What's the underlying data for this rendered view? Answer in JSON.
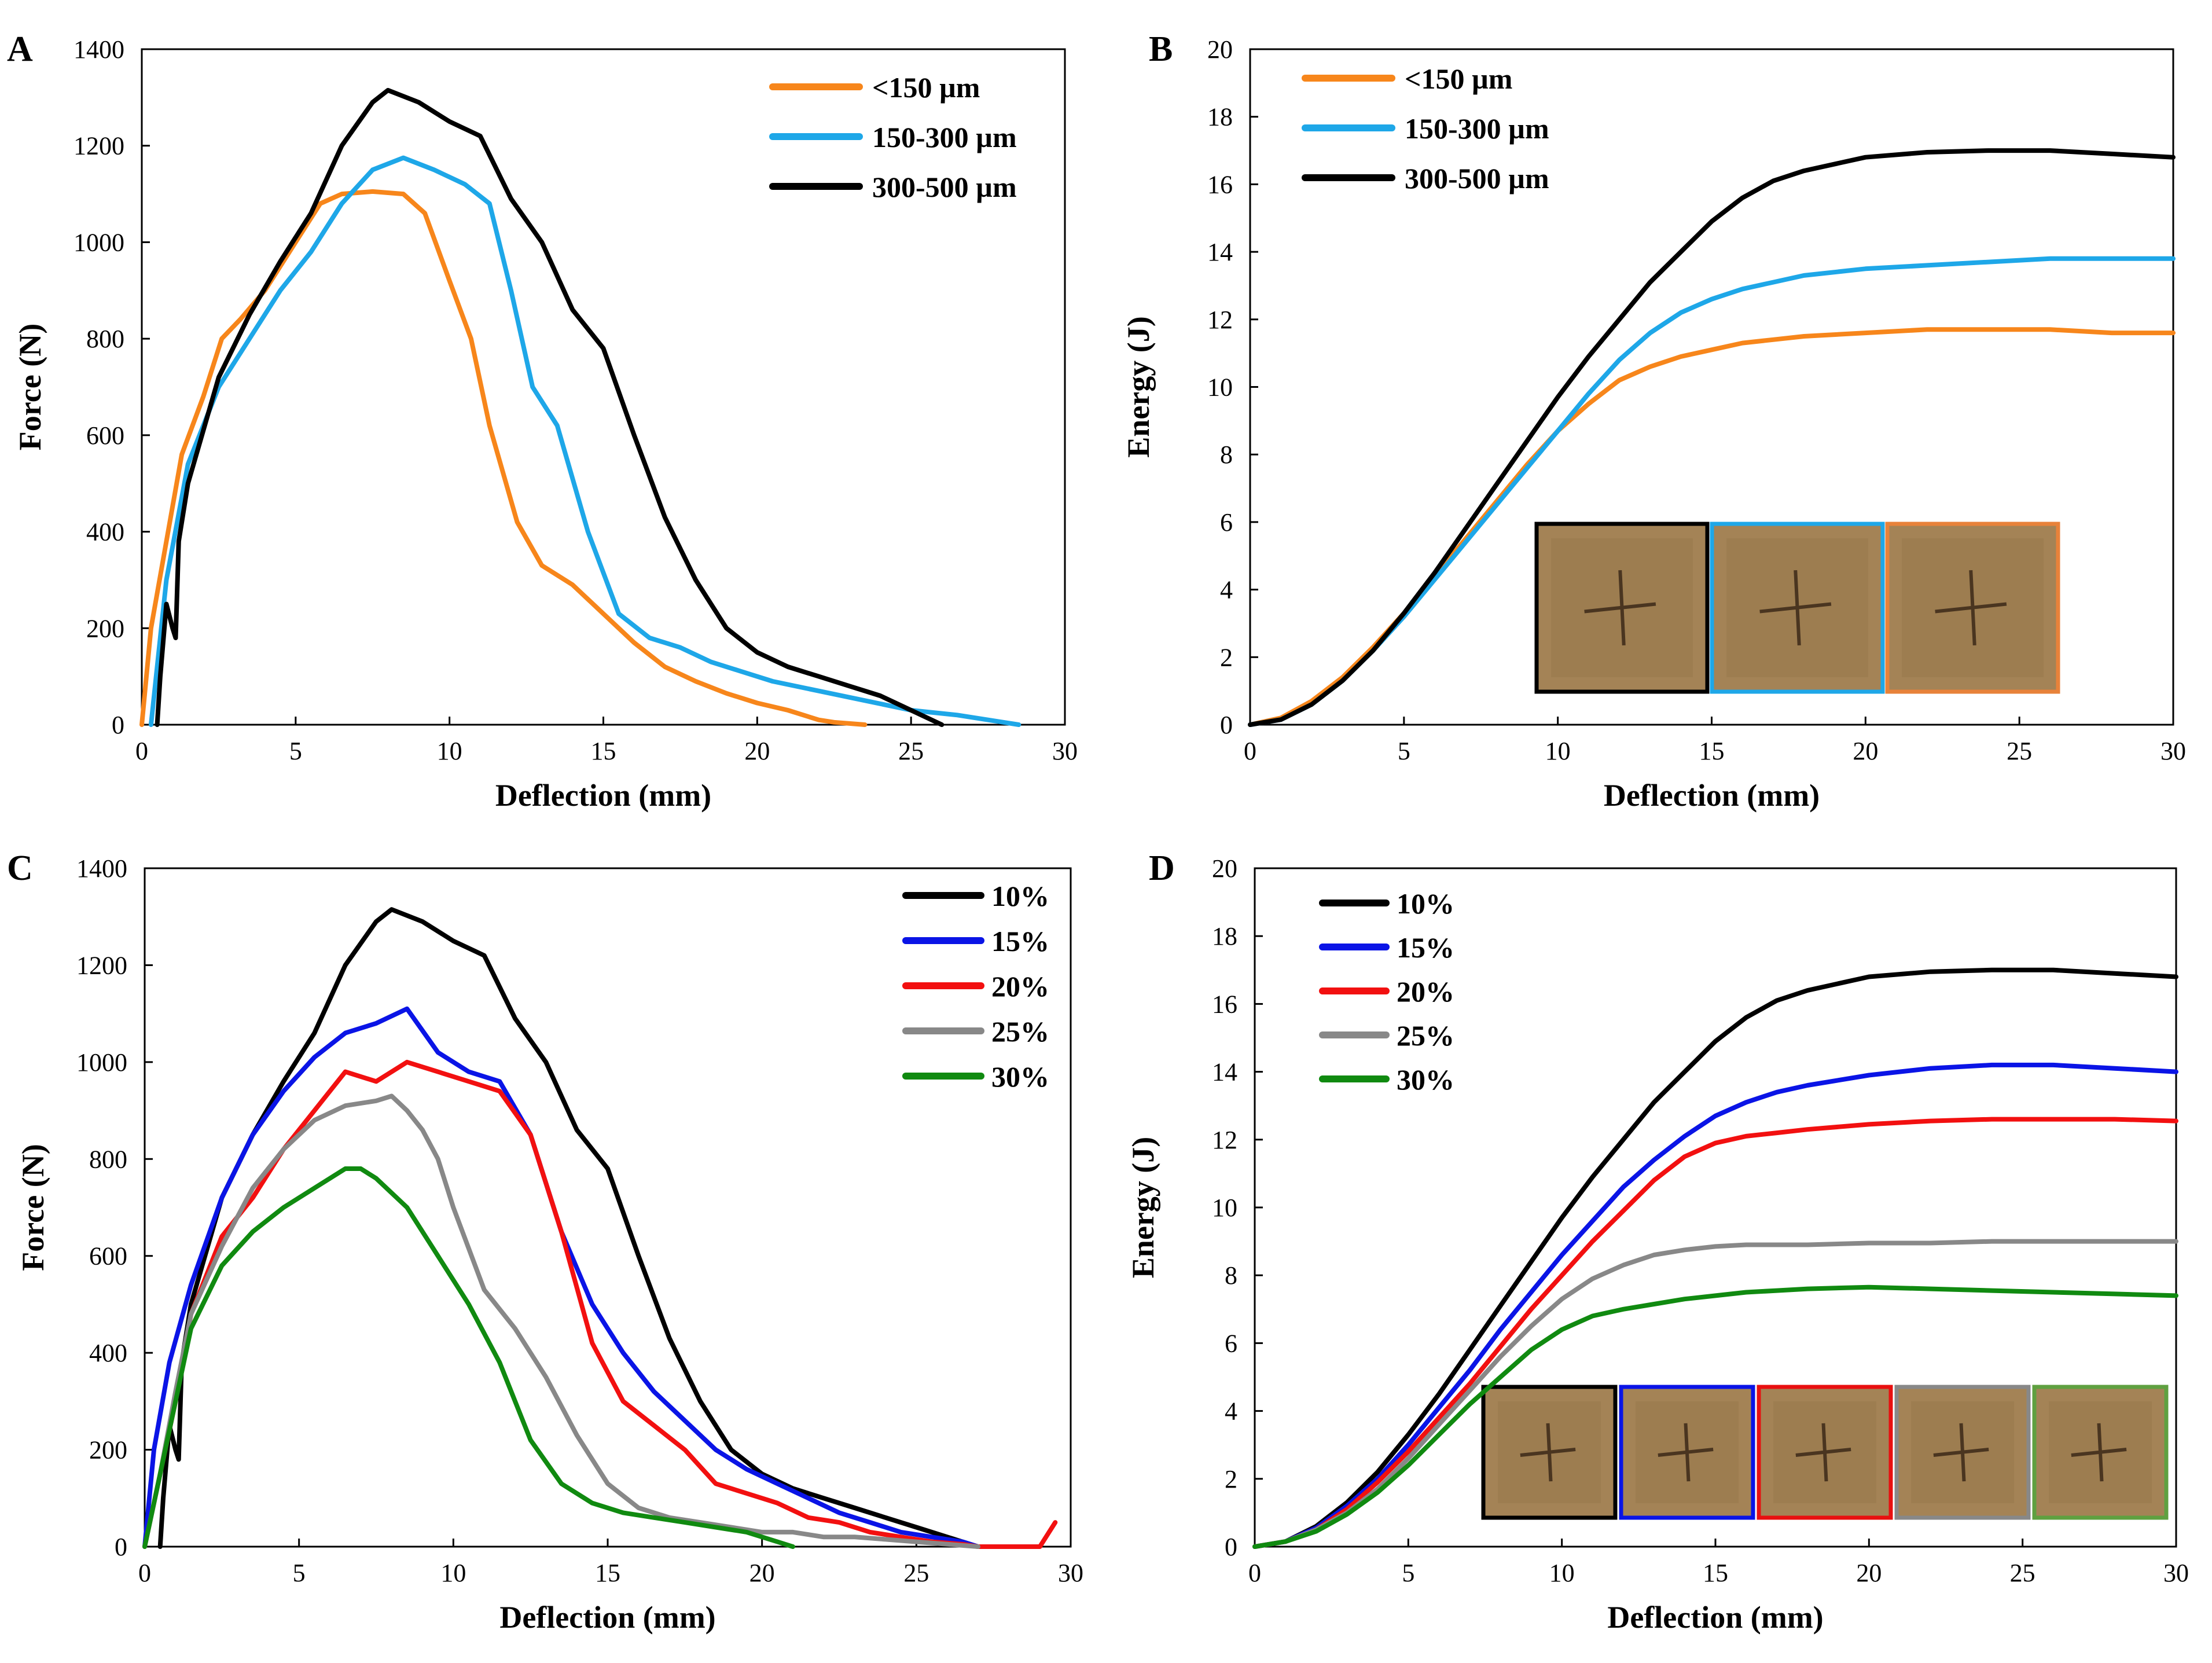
{
  "chart_data": [
    {
      "panel": "A",
      "type": "line",
      "xlabel": "Deflection (mm)",
      "ylabel": "Force (N)",
      "xlim": [
        0,
        30
      ],
      "ylim": [
        0,
        1400
      ],
      "xticks": [
        0,
        5,
        10,
        15,
        20,
        25,
        30
      ],
      "yticks": [
        0,
        200,
        400,
        600,
        800,
        1000,
        1200,
        1400
      ],
      "grid": false,
      "legend": "top-right",
      "series": [
        {
          "name": "<150 µm",
          "color": "#F7861B",
          "x": [
            0,
            0.3,
            0.8,
            1.3,
            2,
            2.6,
            3.2,
            4,
            5,
            5.8,
            6.5,
            7.5,
            8.5,
            9.2,
            10,
            10.7,
            11.3,
            12.2,
            13,
            14,
            15,
            16,
            17,
            18,
            19,
            20,
            21,
            22,
            22.5,
            23.5
          ],
          "y": [
            0,
            200,
            380,
            560,
            680,
            800,
            840,
            900,
            1000,
            1080,
            1100,
            1105,
            1100,
            1060,
            920,
            800,
            620,
            420,
            330,
            290,
            230,
            170,
            120,
            90,
            65,
            45,
            30,
            10,
            5,
            0
          ]
        },
        {
          "name": "150-300 µm",
          "color": "#1EA7E8",
          "x": [
            0.3,
            0.8,
            1.5,
            2.5,
            3.5,
            4.5,
            5.5,
            6.5,
            7.5,
            8.5,
            9.5,
            10.5,
            11.3,
            12,
            12.7,
            13.5,
            14.5,
            15.5,
            16.5,
            17.5,
            18.5,
            19.5,
            20.5,
            22,
            23.5,
            25,
            26.5,
            28,
            28.5
          ],
          "y": [
            0,
            300,
            540,
            700,
            800,
            900,
            980,
            1080,
            1150,
            1175,
            1150,
            1120,
            1080,
            900,
            700,
            620,
            400,
            230,
            180,
            160,
            130,
            110,
            90,
            70,
            50,
            30,
            20,
            5,
            0
          ]
        },
        {
          "name": "300-500 µm",
          "color": "#000000",
          "x": [
            0.5,
            0.6,
            0.8,
            1,
            1.1,
            1.2,
            1.5,
            2.5,
            3.5,
            4.5,
            5.5,
            6.5,
            7.5,
            8,
            9,
            10,
            11,
            12,
            13,
            14,
            15,
            16,
            17,
            18,
            19,
            20,
            21,
            22,
            23,
            24,
            25,
            26
          ],
          "y": [
            0,
            100,
            250,
            200,
            180,
            380,
            500,
            720,
            850,
            960,
            1060,
            1200,
            1290,
            1315,
            1290,
            1250,
            1220,
            1090,
            1000,
            860,
            780,
            600,
            430,
            300,
            200,
            150,
            120,
            100,
            80,
            60,
            30,
            0
          ]
        }
      ]
    },
    {
      "panel": "B",
      "type": "line",
      "xlabel": "Deflection (mm)",
      "ylabel": "Energy (J)",
      "xlim": [
        0,
        30
      ],
      "ylim": [
        0,
        20
      ],
      "xticks": [
        0,
        5,
        10,
        15,
        20,
        25,
        30
      ],
      "yticks": [
        0,
        2,
        4,
        6,
        8,
        10,
        12,
        14,
        16,
        18,
        20
      ],
      "grid": false,
      "legend": "top-left",
      "series": [
        {
          "name": "<150 µm",
          "color": "#F7861B",
          "x": [
            0,
            1,
            2,
            3,
            4,
            5,
            6,
            7,
            8,
            9,
            10,
            11,
            12,
            13,
            14,
            15,
            16,
            17,
            18,
            20,
            22,
            24,
            26,
            28,
            30
          ],
          "y": [
            0,
            0.2,
            0.7,
            1.4,
            2.3,
            3.3,
            4.4,
            5.5,
            6.6,
            7.7,
            8.7,
            9.5,
            10.2,
            10.6,
            10.9,
            11.1,
            11.3,
            11.4,
            11.5,
            11.6,
            11.7,
            11.7,
            11.7,
            11.6,
            11.6
          ]
        },
        {
          "name": "150-300 µm",
          "color": "#1EA7E8",
          "x": [
            0,
            1,
            2,
            3,
            4,
            5,
            6,
            7,
            8,
            9,
            10,
            11,
            12,
            13,
            14,
            15,
            16,
            17,
            18,
            20,
            22,
            24,
            26,
            28,
            30
          ],
          "y": [
            0,
            0.15,
            0.6,
            1.3,
            2.2,
            3.2,
            4.3,
            5.4,
            6.5,
            7.6,
            8.7,
            9.8,
            10.8,
            11.6,
            12.2,
            12.6,
            12.9,
            13.1,
            13.3,
            13.5,
            13.6,
            13.7,
            13.8,
            13.8,
            13.8
          ]
        },
        {
          "name": "300-500 µm",
          "color": "#000000",
          "x": [
            0,
            1,
            2,
            3,
            4,
            5,
            6,
            7,
            8,
            9,
            10,
            11,
            12,
            13,
            14,
            15,
            16,
            17,
            18,
            20,
            22,
            24,
            26,
            28,
            30
          ],
          "y": [
            0,
            0.15,
            0.6,
            1.3,
            2.2,
            3.3,
            4.5,
            5.8,
            7.1,
            8.4,
            9.7,
            10.9,
            12.0,
            13.1,
            14.0,
            14.9,
            15.6,
            16.1,
            16.4,
            16.8,
            16.95,
            17.0,
            17.0,
            16.9,
            16.8
          ]
        }
      ]
    },
    {
      "panel": "C",
      "type": "line",
      "xlabel": "Deflection (mm)",
      "ylabel": "Force (N)",
      "xlim": [
        0,
        30
      ],
      "ylim": [
        0,
        1400
      ],
      "xticks": [
        0,
        5,
        10,
        15,
        20,
        25,
        30
      ],
      "yticks": [
        0,
        200,
        400,
        600,
        800,
        1000,
        1200,
        1400
      ],
      "grid": false,
      "legend": "top-right",
      "series": [
        {
          "name": "10%",
          "color": "#000000",
          "x": [
            0.5,
            0.6,
            0.8,
            1,
            1.1,
            1.2,
            1.5,
            2.5,
            3.5,
            4.5,
            5.5,
            6.5,
            7.5,
            8,
            9,
            10,
            11,
            12,
            13,
            14,
            15,
            16,
            17,
            18,
            19,
            20,
            21,
            22,
            23,
            24,
            25,
            26,
            27
          ],
          "y": [
            0,
            100,
            250,
            200,
            180,
            380,
            500,
            720,
            850,
            960,
            1060,
            1200,
            1290,
            1315,
            1290,
            1250,
            1220,
            1090,
            1000,
            860,
            780,
            600,
            430,
            300,
            200,
            150,
            120,
            100,
            80,
            60,
            40,
            20,
            0
          ]
        },
        {
          "name": "15%",
          "color": "#0A14E6",
          "x": [
            0,
            0.3,
            0.8,
            1.5,
            2.5,
            3.5,
            4.5,
            5.5,
            6.5,
            7.5,
            8.5,
            9.5,
            10.5,
            11.5,
            12.5,
            13.5,
            14.5,
            15.5,
            16.5,
            17.5,
            18.5,
            19.5,
            20.5,
            21.5,
            22.5,
            23.5,
            24.5,
            25.5,
            26.5,
            27
          ],
          "y": [
            0,
            200,
            380,
            540,
            720,
            850,
            940,
            1010,
            1060,
            1080,
            1110,
            1020,
            980,
            960,
            850,
            650,
            500,
            400,
            320,
            260,
            200,
            160,
            130,
            100,
            70,
            50,
            30,
            20,
            10,
            0
          ]
        },
        {
          "name": "20%",
          "color": "#F21010",
          "x": [
            0,
            0.5,
            1,
            1.5,
            2.5,
            3.5,
            4.5,
            5.5,
            6.5,
            7.5,
            8.5,
            9.5,
            10.5,
            11.5,
            12.5,
            13.5,
            14.5,
            15.5,
            16.5,
            17.5,
            18.5,
            19.5,
            20.5,
            21.5,
            22.5,
            23.5,
            24.5,
            25.5,
            26.5,
            27,
            29,
            29.5
          ],
          "y": [
            0,
            150,
            300,
            480,
            640,
            720,
            820,
            900,
            980,
            960,
            1000,
            980,
            960,
            940,
            850,
            650,
            420,
            300,
            250,
            200,
            130,
            110,
            90,
            60,
            50,
            30,
            20,
            10,
            5,
            0,
            0,
            50
          ]
        },
        {
          "name": "25%",
          "color": "#888888",
          "x": [
            0,
            0.5,
            1,
            1.5,
            2.5,
            3.5,
            4.5,
            5.5,
            6.5,
            7.5,
            8,
            8.5,
            9,
            9.5,
            10,
            11,
            12,
            13,
            14,
            15,
            16,
            17,
            18,
            19,
            20,
            21,
            22,
            23,
            24,
            25,
            26,
            27
          ],
          "y": [
            0,
            150,
            320,
            480,
            620,
            740,
            820,
            880,
            910,
            920,
            930,
            900,
            860,
            800,
            700,
            530,
            450,
            350,
            230,
            130,
            80,
            60,
            50,
            40,
            30,
            30,
            20,
            20,
            15,
            10,
            5,
            0
          ]
        },
        {
          "name": "30%",
          "color": "#108A10",
          "x": [
            0,
            0.5,
            1,
            1.5,
            2.5,
            3.5,
            4.5,
            5.5,
            6.5,
            7,
            7.5,
            8.5,
            9.5,
            10.5,
            11.5,
            12.5,
            13.5,
            14.5,
            15.5,
            16.5,
            17.5,
            18.5,
            19.5,
            20.5,
            21
          ],
          "y": [
            0,
            150,
            300,
            450,
            580,
            650,
            700,
            740,
            780,
            780,
            760,
            700,
            600,
            500,
            380,
            220,
            130,
            90,
            70,
            60,
            50,
            40,
            30,
            10,
            0
          ]
        }
      ]
    },
    {
      "panel": "D",
      "type": "line",
      "xlabel": "Deflection (mm)",
      "ylabel": "Energy (J)",
      "xlim": [
        0,
        30
      ],
      "ylim": [
        0,
        20
      ],
      "xticks": [
        0,
        5,
        10,
        15,
        20,
        25,
        30
      ],
      "yticks": [
        0,
        2,
        4,
        6,
        8,
        10,
        12,
        14,
        16,
        18,
        20
      ],
      "grid": false,
      "legend": "top-left",
      "series": [
        {
          "name": "10%",
          "color": "#000000",
          "x": [
            0,
            1,
            2,
            3,
            4,
            5,
            6,
            7,
            8,
            9,
            10,
            11,
            12,
            13,
            14,
            15,
            16,
            17,
            18,
            20,
            22,
            24,
            26,
            28,
            30
          ],
          "y": [
            0,
            0.15,
            0.6,
            1.3,
            2.2,
            3.3,
            4.5,
            5.8,
            7.1,
            8.4,
            9.7,
            10.9,
            12.0,
            13.1,
            14.0,
            14.9,
            15.6,
            16.1,
            16.4,
            16.8,
            16.95,
            17.0,
            17.0,
            16.9,
            16.8
          ]
        },
        {
          "name": "15%",
          "color": "#0A14E6",
          "x": [
            0,
            1,
            2,
            3,
            4,
            5,
            6,
            7,
            8,
            9,
            10,
            11,
            12,
            13,
            14,
            15,
            16,
            17,
            18,
            20,
            22,
            24,
            26,
            28,
            30
          ],
          "y": [
            0,
            0.15,
            0.55,
            1.2,
            2.0,
            3.0,
            4.1,
            5.2,
            6.4,
            7.5,
            8.6,
            9.6,
            10.6,
            11.4,
            12.1,
            12.7,
            13.1,
            13.4,
            13.6,
            13.9,
            14.1,
            14.2,
            14.2,
            14.1,
            14.0
          ]
        },
        {
          "name": "20%",
          "color": "#F21010",
          "x": [
            0,
            1,
            2,
            3,
            4,
            5,
            6,
            7,
            8,
            9,
            10,
            11,
            12,
            13,
            14,
            15,
            16,
            17,
            18,
            20,
            22,
            24,
            26,
            28,
            30
          ],
          "y": [
            0,
            0.15,
            0.5,
            1.1,
            1.9,
            2.8,
            3.8,
            4.8,
            5.9,
            7.0,
            8.0,
            9.0,
            9.9,
            10.8,
            11.5,
            11.9,
            12.1,
            12.2,
            12.3,
            12.45,
            12.55,
            12.6,
            12.6,
            12.6,
            12.55
          ]
        },
        {
          "name": "25%",
          "color": "#888888",
          "x": [
            0,
            1,
            2,
            3,
            4,
            5,
            6,
            7,
            8,
            9,
            10,
            11,
            12,
            13,
            14,
            15,
            16,
            17,
            18,
            20,
            22,
            24,
            26,
            28,
            30
          ],
          "y": [
            0,
            0.15,
            0.5,
            1.0,
            1.7,
            2.6,
            3.6,
            4.6,
            5.6,
            6.5,
            7.3,
            7.9,
            8.3,
            8.6,
            8.75,
            8.85,
            8.9,
            8.9,
            8.9,
            8.95,
            8.95,
            9.0,
            9.0,
            9.0,
            9.0
          ]
        },
        {
          "name": "30%",
          "color": "#108A10",
          "x": [
            0,
            1,
            2,
            3,
            4,
            5,
            6,
            7,
            8,
            9,
            10,
            11,
            12,
            13,
            14,
            15,
            16,
            17,
            18,
            20,
            22,
            24,
            26,
            28,
            30
          ],
          "y": [
            0,
            0.15,
            0.45,
            0.95,
            1.6,
            2.4,
            3.3,
            4.2,
            5.0,
            5.8,
            6.4,
            6.8,
            7.0,
            7.15,
            7.3,
            7.4,
            7.5,
            7.55,
            7.6,
            7.65,
            7.6,
            7.55,
            7.5,
            7.45,
            7.4
          ]
        }
      ]
    }
  ],
  "insets": {
    "B": {
      "frame_colors": [
        "#000000",
        "#1EA7E8",
        "#E8823A"
      ]
    },
    "D": {
      "frame_colors": [
        "#000000",
        "#0A14E6",
        "#E81010",
        "#888888",
        "#5FA040"
      ]
    }
  }
}
